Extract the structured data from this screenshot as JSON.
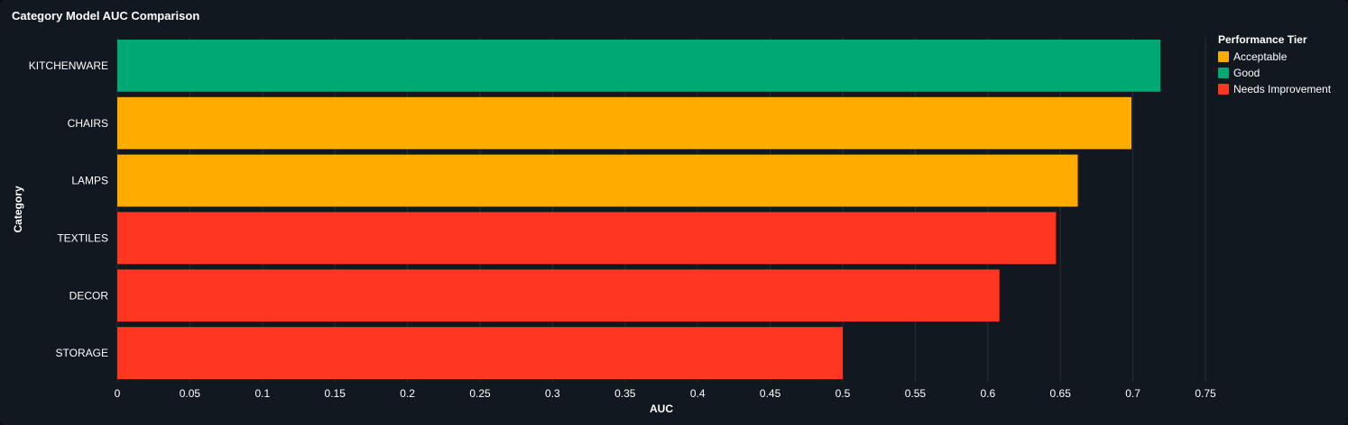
{
  "title": "Category Model AUC Comparison",
  "colors": {
    "background": "#121820",
    "grid": "#2a3038",
    "text": "#ffffff",
    "tiers": {
      "Acceptable": "#ffab00",
      "Good": "#00a873",
      "Needs Improvement": "#ff3622"
    }
  },
  "legend": {
    "title": "Performance Tier",
    "items": [
      "Acceptable",
      "Good",
      "Needs Improvement"
    ],
    "placement": "right"
  },
  "chart_data": {
    "type": "bar",
    "orientation": "horizontal",
    "categories": [
      "KITCHENWARE",
      "CHAIRS",
      "LAMPS",
      "TEXTILES",
      "DECOR",
      "STORAGE"
    ],
    "values": [
      0.719,
      0.699,
      0.662,
      0.647,
      0.608,
      0.5
    ],
    "tiers": [
      "Good",
      "Acceptable",
      "Acceptable",
      "Needs Improvement",
      "Needs Improvement",
      "Needs Improvement"
    ],
    "xlabel": "AUC",
    "ylabel": "Category",
    "xlim": [
      0,
      0.75
    ],
    "xticks": [
      0,
      0.05,
      0.1,
      0.15,
      0.2,
      0.25,
      0.3,
      0.35,
      0.4,
      0.45,
      0.5,
      0.55,
      0.6,
      0.65,
      0.7,
      0.75
    ],
    "xtick_labels": [
      "0",
      "0.05",
      "0.1",
      "0.15",
      "0.2",
      "0.25",
      "0.3",
      "0.35",
      "0.4",
      "0.45",
      "0.5",
      "0.55",
      "0.6",
      "0.65",
      "0.7",
      "0.75"
    ],
    "grid": true
  }
}
